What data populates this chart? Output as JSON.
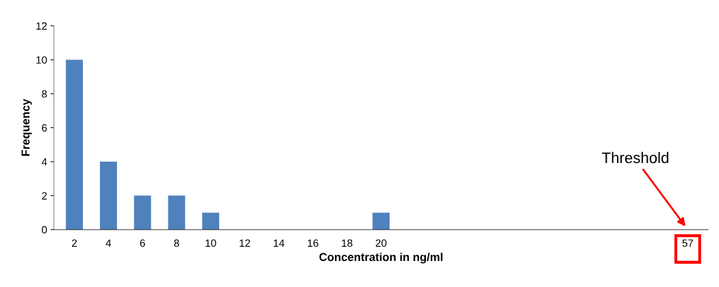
{
  "chart_data": {
    "type": "bar",
    "xlabel": "Concentration in ng/ml",
    "ylabel": "Frequency",
    "categories": [
      "2",
      "4",
      "6",
      "8",
      "10",
      "12",
      "14",
      "16",
      "18",
      "20",
      null,
      null,
      null,
      null,
      null,
      null,
      null,
      null,
      "57"
    ],
    "values": [
      10,
      4,
      2,
      2,
      1,
      null,
      null,
      null,
      null,
      1,
      null,
      null,
      null,
      null,
      null,
      null,
      null,
      null,
      null
    ],
    "color": "#4f81bd",
    "ylim": [
      0,
      12
    ],
    "yticks": [
      0,
      2,
      4,
      6,
      8,
      10,
      12
    ],
    "grid": false,
    "legend": false,
    "annotations": [
      "Threshold"
    ]
  }
}
